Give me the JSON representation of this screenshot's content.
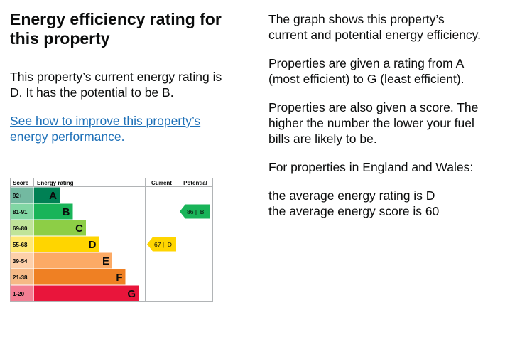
{
  "heading": "Energy efficiency rating for this property",
  "intro": "This property’s current energy rating is D. It has the potential to be B.",
  "improve_link": "See how to improve this property’s energy performance.",
  "right": {
    "p1": "The graph shows this property’s current and potential energy efficiency.",
    "p2": "Properties are given a rating from A (most efficient) to G (least efficient).",
    "p3": "Properties are also given a score. The higher the number the lower your fuel bills are likely to be.",
    "p4": "For properties in England and Wales:",
    "avg_rating": "the average energy rating is D",
    "avg_score": "the average energy score is 60"
  },
  "chart_data": {
    "type": "table",
    "headers": {
      "score": "Score",
      "rating": "Energy rating",
      "current": "Current",
      "potential": "Potential"
    },
    "bands": [
      {
        "score": "92+",
        "letter": "A",
        "color": "#008054"
      },
      {
        "score": "81-91",
        "letter": "B",
        "color": "#19b459"
      },
      {
        "score": "69-80",
        "letter": "C",
        "color": "#8dce46"
      },
      {
        "score": "55-68",
        "letter": "D",
        "color": "#ffd500"
      },
      {
        "score": "39-54",
        "letter": "E",
        "color": "#fcaa65"
      },
      {
        "score": "21-38",
        "letter": "F",
        "color": "#ef8023"
      },
      {
        "score": "1-20",
        "letter": "G",
        "color": "#e9153b"
      }
    ],
    "current": {
      "score": 67,
      "letter": "D",
      "label": "67 |  D"
    },
    "potential": {
      "score": 86,
      "letter": "B",
      "label": "86 |  B"
    }
  }
}
